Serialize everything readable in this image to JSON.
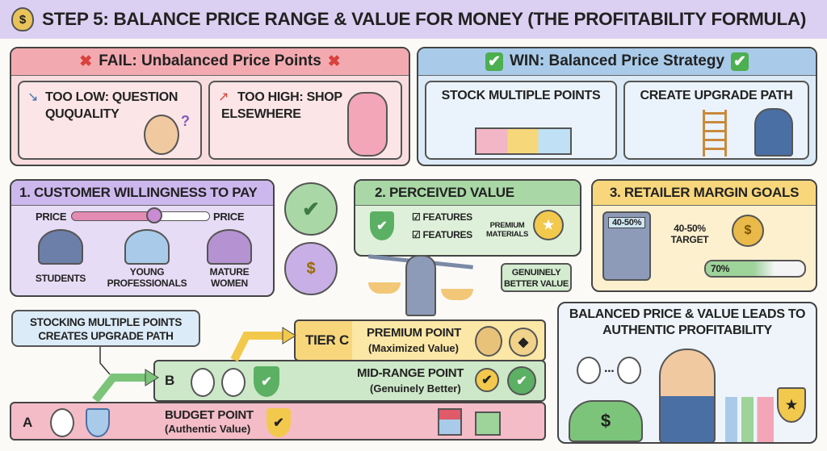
{
  "title": {
    "text": "STEP 5: BALANCE PRICE RANGE & VALUE FOR MONEY (THE PROFITABILITY FORMULA)",
    "icon": "money-bag-icon"
  },
  "fail": {
    "header": "FAIL: Unbalanced Price Points",
    "too_low": "TOO LOW: QUESTION QUQUALITY",
    "too_high": "TOO HIGH: SHOP ELSEWHERE"
  },
  "win": {
    "header": "WIN: Balanced Price Strategy",
    "stock": "STOCK MULTIPLE POINTS",
    "upgrade": "CREATE UPGRADE PATH"
  },
  "willingness": {
    "header": "1. CUSTOMER WILLINGNESS TO PAY",
    "price_left": "PRICE",
    "price_right": "PRICE",
    "slider_level": 0.6,
    "segments": [
      "STUDENTS",
      "YOUNG PROFESSIONALS",
      "MATURE WOMEN"
    ]
  },
  "perceived": {
    "header": "2. PERCEIVED VALUE",
    "feature1": "FEATURES",
    "feature2": "FEATURES",
    "materials": "PREMIUM MATERIALS",
    "callout": "GENUINELY BETTER VALUE"
  },
  "margin": {
    "header": "3. RETAILER MARGIN GOALS",
    "calc_display": "40-50%",
    "target": "40-50% TARGET",
    "progress_label": "70%",
    "progress": 0.7
  },
  "upgrade_callout": "STOCKING MULTIPLE POINTS CREATES UPGRADE PATH",
  "tiers": {
    "c": {
      "letter": "TIER C",
      "name": "PREMIUM POINT",
      "sub": "(Maximized Value)"
    },
    "b": {
      "letter": "B",
      "name": "MID-RANGE POINT",
      "sub": "(Genuinely Better)"
    },
    "a": {
      "letter": "A",
      "name": "BUDGET POINT",
      "sub": "(Authentic Value)"
    }
  },
  "result": {
    "text": "BALANCED PRICE & VALUE LEADS TO AUTHENTIC PROFITABILITY",
    "dots": "..."
  },
  "colors": {
    "lavender": "#dcd0f2",
    "pink": "#f6d2d5",
    "blue": "#cfe2f3",
    "green": "#d3ebcf",
    "yellow": "#fbe7b0"
  }
}
